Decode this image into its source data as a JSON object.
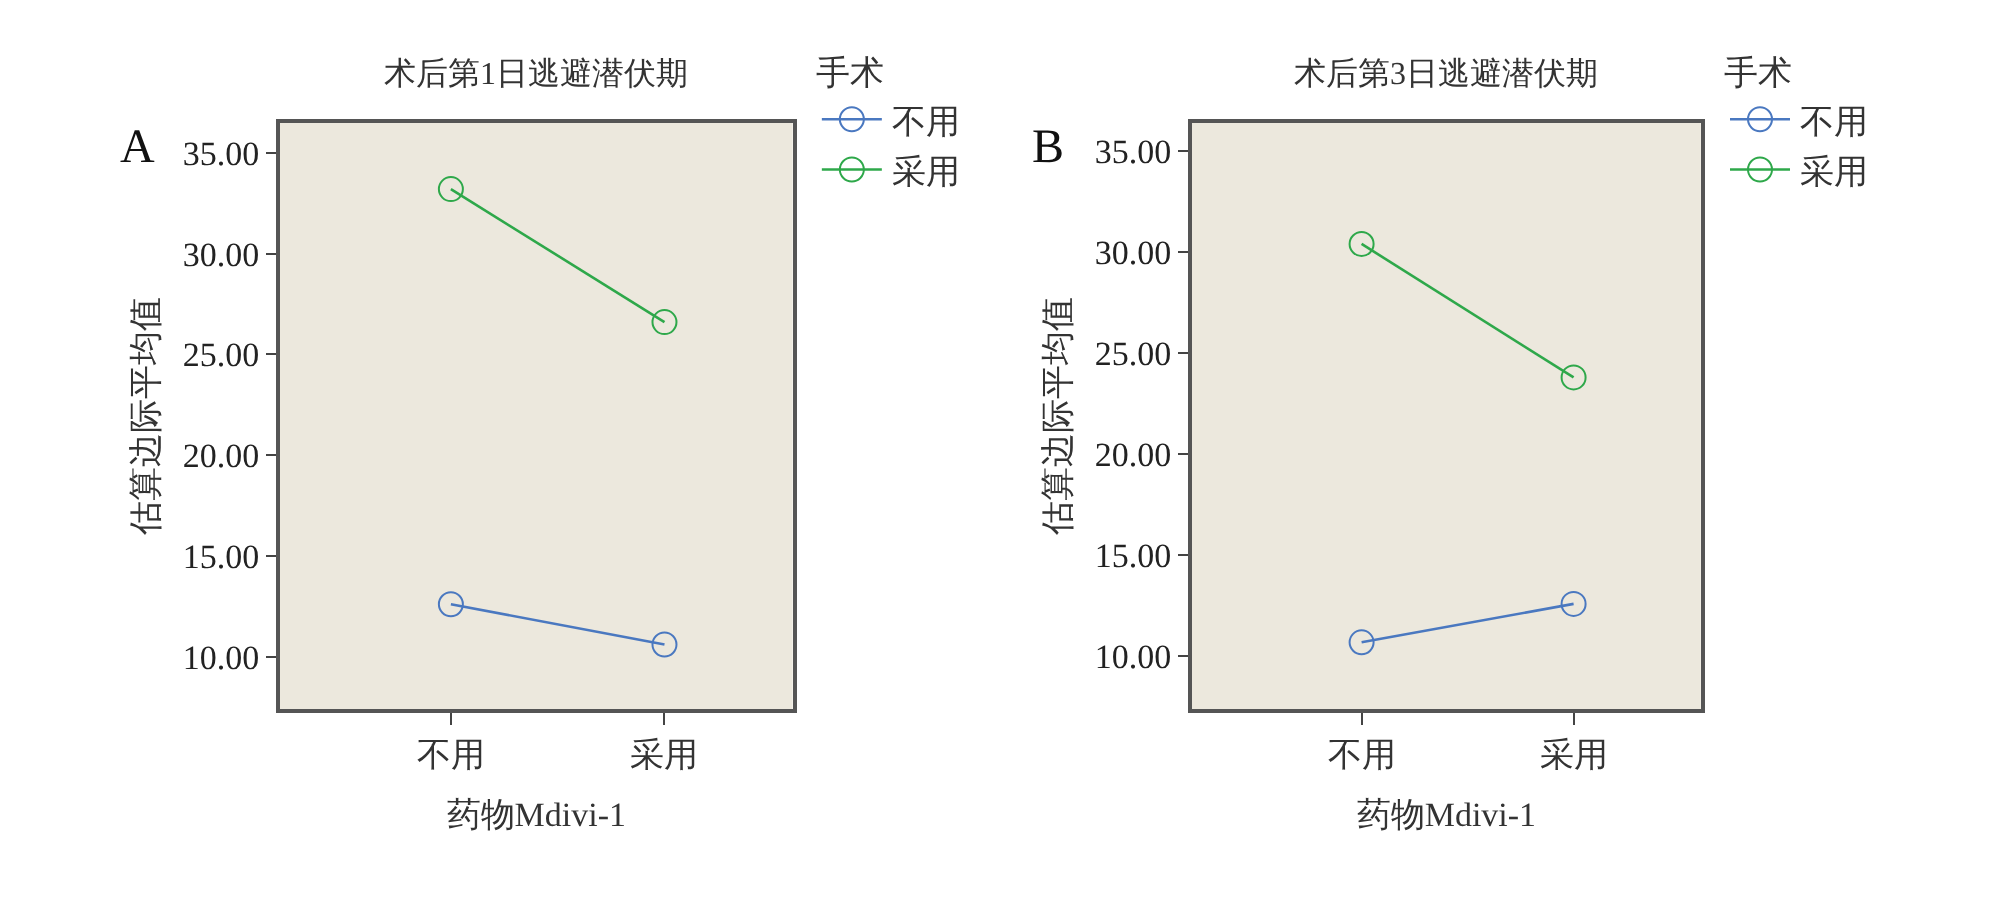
{
  "chart_data": [
    {
      "type": "line",
      "title": "术后第1日逃避潜伏期",
      "xlabel": "药物Mdivi-1",
      "ylabel": "估算边际平均值",
      "legend_title": "手术",
      "annotations": [
        "A"
      ],
      "categories": [
        "不用",
        "采用"
      ],
      "series": [
        {
          "name": "不用",
          "color": "#4a78c0",
          "values": [
            12.6,
            10.6
          ]
        },
        {
          "name": "采用",
          "color": "#2ea84a",
          "values": [
            33.2,
            26.6
          ]
        }
      ],
      "ylim": [
        7.4,
        36.5
      ],
      "yticks": [
        {
          "value": 10,
          "label": "10.00"
        },
        {
          "value": 15,
          "label": "15.00"
        },
        {
          "value": 20,
          "label": "20.00"
        },
        {
          "value": 25,
          "label": "25.00"
        },
        {
          "value": 30,
          "label": "30.00"
        },
        {
          "value": 35,
          "label": "35.00"
        }
      ],
      "grid": false,
      "legend": "top right",
      "marker": "circle",
      "line_style": "solid"
    },
    {
      "type": "line",
      "title": "术后第3日逃避潜伏期",
      "xlabel": "药物Mdivi-1",
      "ylabel": "估算边际平均值",
      "legend_title": "手术",
      "annotations": [
        "B"
      ],
      "categories": [
        "不用",
        "采用"
      ],
      "series": [
        {
          "name": "不用",
          "color": "#4a78c0",
          "values": [
            10.7,
            12.6
          ]
        },
        {
          "name": "采用",
          "color": "#2ea84a",
          "values": [
            30.4,
            23.8
          ]
        }
      ],
      "ylim": [
        7.4,
        36.4
      ],
      "yticks": [
        {
          "value": 10,
          "label": "10.00"
        },
        {
          "value": 15,
          "label": "15.00"
        },
        {
          "value": 20,
          "label": "20.00"
        },
        {
          "value": 25,
          "label": "25.00"
        },
        {
          "value": 30,
          "label": "30.00"
        },
        {
          "value": 35,
          "label": "35.00"
        }
      ],
      "grid": false,
      "legend": "top right",
      "marker": "circle",
      "line_style": "solid"
    }
  ]
}
